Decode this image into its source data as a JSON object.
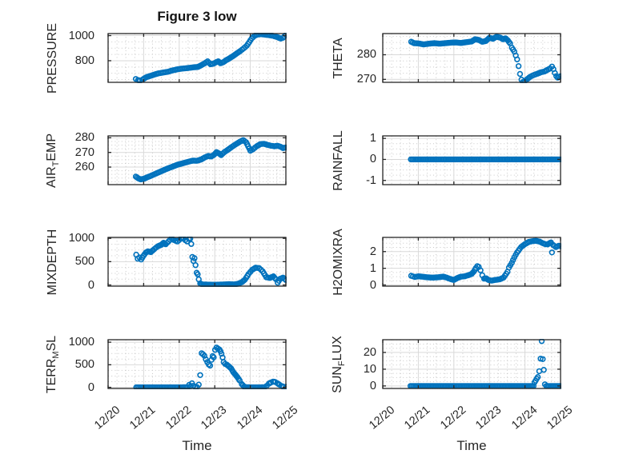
{
  "figure": {
    "title": "Figure 3 low",
    "xlabel": "Time",
    "x_tick_labels": [
      "12/20",
      "12/21",
      "12/22",
      "12/23",
      "12/24",
      "12/25"
    ],
    "xlim_days": [
      0,
      5
    ],
    "marker_interval_days": 0.04,
    "accent_color": "#0072BD",
    "axis_color": "#262626",
    "grid_color": "#d9d9d9",
    "minor_grid_color": "#c9c9c9",
    "background": "#ffffff"
  },
  "chart_data": [
    {
      "type": "scatter",
      "ylabel": "PRESSURE",
      "ylabel_segments": [
        {
          "text": "PRESSURE",
          "sub": false
        }
      ],
      "yticks": [
        1000,
        800
      ],
      "ylim": [
        628,
        1016
      ],
      "points": [
        [
          0.78,
          655
        ],
        [
          0.84,
          646
        ],
        [
          0.9,
          642
        ],
        [
          0.96,
          648
        ],
        [
          1.02,
          660
        ],
        [
          1.1,
          672
        ],
        [
          1.2,
          680
        ],
        [
          1.3,
          690
        ],
        [
          1.42,
          700
        ],
        [
          1.55,
          706
        ],
        [
          1.68,
          712
        ],
        [
          1.8,
          722
        ],
        [
          1.92,
          730
        ],
        [
          2.05,
          736
        ],
        [
          2.18,
          740
        ],
        [
          2.3,
          744
        ],
        [
          2.42,
          748
        ],
        [
          2.52,
          750
        ],
        [
          2.62,
          764
        ],
        [
          2.72,
          780
        ],
        [
          2.8,
          795
        ],
        [
          2.88,
          772
        ],
        [
          2.96,
          776
        ],
        [
          3.04,
          788
        ],
        [
          3.1,
          795
        ],
        [
          3.16,
          780
        ],
        [
          3.24,
          788
        ],
        [
          3.32,
          804
        ],
        [
          3.42,
          820
        ],
        [
          3.52,
          838
        ],
        [
          3.62,
          858
        ],
        [
          3.72,
          878
        ],
        [
          3.82,
          900
        ],
        [
          3.9,
          920
        ],
        [
          3.97,
          948
        ],
        [
          4.04,
          978
        ],
        [
          4.12,
          998
        ],
        [
          4.2,
          1008
        ],
        [
          4.3,
          1011
        ],
        [
          4.4,
          1008
        ],
        [
          4.52,
          1004
        ],
        [
          4.64,
          998
        ],
        [
          4.76,
          988
        ],
        [
          4.86,
          976
        ],
        [
          4.92,
          982
        ],
        [
          5.0,
          1005
        ]
      ]
    },
    {
      "type": "scatter",
      "ylabel": "THETA",
      "ylabel_segments": [
        {
          "text": "THETA",
          "sub": false
        }
      ],
      "yticks": [
        280,
        270
      ],
      "ylim": [
        268.8,
        288.6
      ],
      "points": [
        [
          0.8,
          285.3
        ],
        [
          0.88,
          284.7
        ],
        [
          1.0,
          284.6
        ],
        [
          1.15,
          284.2
        ],
        [
          1.3,
          284.5
        ],
        [
          1.45,
          284.7
        ],
        [
          1.6,
          284.5
        ],
        [
          1.75,
          284.7
        ],
        [
          1.9,
          284.9
        ],
        [
          2.05,
          285.0
        ],
        [
          2.2,
          284.8
        ],
        [
          2.35,
          285.1
        ],
        [
          2.5,
          285.4
        ],
        [
          2.6,
          286.3
        ],
        [
          2.7,
          286.0
        ],
        [
          2.8,
          285.3
        ],
        [
          2.9,
          285.6
        ],
        [
          3.0,
          286.9
        ],
        [
          3.1,
          286.5
        ],
        [
          3.2,
          287.3
        ],
        [
          3.3,
          287.0
        ],
        [
          3.38,
          286.3
        ],
        [
          3.45,
          286.7
        ],
        [
          3.52,
          285.8
        ],
        [
          3.58,
          284.6
        ],
        [
          3.63,
          282.9
        ],
        [
          3.7,
          281.3
        ],
        [
          3.74,
          279.7
        ],
        [
          3.78,
          278.1
        ],
        [
          3.82,
          275.4
        ],
        [
          3.86,
          272.2
        ],
        [
          3.9,
          269.9
        ],
        [
          3.94,
          268.9
        ],
        [
          4.0,
          269.4
        ],
        [
          4.08,
          270.3
        ],
        [
          4.15,
          271.1
        ],
        [
          4.25,
          271.8
        ],
        [
          4.35,
          272.3
        ],
        [
          4.45,
          272.9
        ],
        [
          4.55,
          273.2
        ],
        [
          4.62,
          273.8
        ],
        [
          4.7,
          274.4
        ],
        [
          4.76,
          275.2
        ],
        [
          4.8,
          274.2
        ],
        [
          4.84,
          272.6
        ],
        [
          4.88,
          271.3
        ],
        [
          4.92,
          270.7
        ],
        [
          4.96,
          271.0
        ],
        [
          5.0,
          271.3
        ]
      ]
    },
    {
      "type": "scatter",
      "ylabel": "AIR_TEMP",
      "ylabel_segments": [
        {
          "text": "AIR",
          "sub": false
        },
        {
          "text": "T",
          "sub": true
        },
        {
          "text": "EMP",
          "sub": false
        }
      ],
      "yticks": [
        280,
        270,
        260
      ],
      "ylim": [
        248,
        281.3
      ],
      "points": [
        [
          0.78,
          253.5
        ],
        [
          0.85,
          252.3
        ],
        [
          0.92,
          251.6
        ],
        [
          1.0,
          252.0
        ],
        [
          1.1,
          253.0
        ],
        [
          1.22,
          254.2
        ],
        [
          1.35,
          255.6
        ],
        [
          1.5,
          257.2
        ],
        [
          1.65,
          258.8
        ],
        [
          1.8,
          260.2
        ],
        [
          1.95,
          261.6
        ],
        [
          2.1,
          262.6
        ],
        [
          2.25,
          263.6
        ],
        [
          2.38,
          264.4
        ],
        [
          2.5,
          264.3
        ],
        [
          2.62,
          265.2
        ],
        [
          2.72,
          266.6
        ],
        [
          2.82,
          267.6
        ],
        [
          2.9,
          267.2
        ],
        [
          2.98,
          268.4
        ],
        [
          3.05,
          270.2
        ],
        [
          3.12,
          269.3
        ],
        [
          3.18,
          268.2
        ],
        [
          3.26,
          270.0
        ],
        [
          3.35,
          271.5
        ],
        [
          3.45,
          273.3
        ],
        [
          3.58,
          275.4
        ],
        [
          3.7,
          277.2
        ],
        [
          3.8,
          278.4
        ],
        [
          3.88,
          277.0
        ],
        [
          3.94,
          274.2
        ],
        [
          4.0,
          271.2
        ],
        [
          4.08,
          272.3
        ],
        [
          4.18,
          274.2
        ],
        [
          4.28,
          275.7
        ],
        [
          4.38,
          275.9
        ],
        [
          4.48,
          275.2
        ],
        [
          4.58,
          274.6
        ],
        [
          4.68,
          274.2
        ],
        [
          4.76,
          274.6
        ],
        [
          4.84,
          274.0
        ],
        [
          4.92,
          273.0
        ],
        [
          5.0,
          273.4
        ]
      ]
    },
    {
      "type": "scatter",
      "ylabel": "RAINFALL",
      "ylabel_segments": [
        {
          "text": "RAINFALL",
          "sub": false
        }
      ],
      "yticks": [
        1,
        0,
        -1
      ],
      "ylim": [
        -1.2,
        1.12
      ],
      "points": [
        [
          0.79,
          0
        ],
        [
          5.0,
          0
        ]
      ]
    },
    {
      "type": "scatter",
      "ylabel": "MIXDEPTH",
      "ylabel_segments": [
        {
          "text": "MIXDEPTH",
          "sub": false
        }
      ],
      "yticks": [
        1000,
        500,
        0
      ],
      "ylim": [
        -25,
        1020
      ],
      "points": [
        [
          0.79,
          650
        ],
        [
          0.83,
          565
        ],
        [
          0.88,
          590
        ],
        [
          0.93,
          548
        ],
        [
          1.0,
          630
        ],
        [
          1.06,
          695
        ],
        [
          1.12,
          720
        ],
        [
          1.2,
          705
        ],
        [
          1.3,
          770
        ],
        [
          1.4,
          830
        ],
        [
          1.5,
          862
        ],
        [
          1.56,
          905
        ],
        [
          1.62,
          872
        ],
        [
          1.7,
          935
        ],
        [
          1.78,
          1000
        ],
        [
          1.85,
          965
        ],
        [
          1.95,
          932
        ],
        [
          2.05,
          1000
        ],
        [
          2.12,
          1005
        ],
        [
          2.17,
          962
        ],
        [
          2.22,
          935
        ],
        [
          2.27,
          990
        ],
        [
          2.31,
          995
        ],
        [
          2.34,
          880
        ],
        [
          2.37,
          600
        ],
        [
          2.4,
          515
        ],
        [
          2.43,
          575
        ],
        [
          2.46,
          425
        ],
        [
          2.49,
          262
        ],
        [
          2.52,
          228
        ],
        [
          2.55,
          120
        ],
        [
          2.59,
          35
        ],
        [
          2.65,
          12
        ],
        [
          2.8,
          8
        ],
        [
          3.0,
          5
        ],
        [
          3.2,
          10
        ],
        [
          3.4,
          18
        ],
        [
          3.55,
          12
        ],
        [
          3.65,
          25
        ],
        [
          3.75,
          55
        ],
        [
          3.85,
          115
        ],
        [
          3.95,
          235
        ],
        [
          4.05,
          325
        ],
        [
          4.15,
          372
        ],
        [
          4.25,
          360
        ],
        [
          4.35,
          292
        ],
        [
          4.45,
          165
        ],
        [
          4.55,
          152
        ],
        [
          4.65,
          185
        ],
        [
          4.72,
          122
        ],
        [
          4.77,
          48
        ],
        [
          4.84,
          132
        ],
        [
          4.92,
          158
        ],
        [
          5.0,
          108
        ]
      ]
    },
    {
      "type": "scatter",
      "ylabel": "H2OMIXRA",
      "ylabel_segments": [
        {
          "text": "H2OMIXRA",
          "sub": false
        }
      ],
      "yticks": [
        2,
        1,
        0
      ],
      "ylim": [
        -0.07,
        2.85
      ],
      "points": [
        [
          0.8,
          0.55
        ],
        [
          0.9,
          0.48
        ],
        [
          1.0,
          0.52
        ],
        [
          1.1,
          0.5
        ],
        [
          1.25,
          0.46
        ],
        [
          1.4,
          0.44
        ],
        [
          1.55,
          0.46
        ],
        [
          1.7,
          0.5
        ],
        [
          1.8,
          0.44
        ],
        [
          1.9,
          0.36
        ],
        [
          2.0,
          0.3
        ],
        [
          2.1,
          0.42
        ],
        [
          2.2,
          0.5
        ],
        [
          2.3,
          0.52
        ],
        [
          2.4,
          0.58
        ],
        [
          2.5,
          0.66
        ],
        [
          2.56,
          0.8
        ],
        [
          2.62,
          1.02
        ],
        [
          2.66,
          1.13
        ],
        [
          2.7,
          1.08
        ],
        [
          2.75,
          0.88
        ],
        [
          2.8,
          0.58
        ],
        [
          2.85,
          0.38
        ],
        [
          2.91,
          0.4
        ],
        [
          2.97,
          0.3
        ],
        [
          3.06,
          0.26
        ],
        [
          3.15,
          0.3
        ],
        [
          3.29,
          0.34
        ],
        [
          3.4,
          0.45
        ],
        [
          3.51,
          0.79
        ],
        [
          3.55,
          1.04
        ],
        [
          3.63,
          1.33
        ],
        [
          3.7,
          1.66
        ],
        [
          3.78,
          1.95
        ],
        [
          3.89,
          2.27
        ],
        [
          4.0,
          2.45
        ],
        [
          4.11,
          2.58
        ],
        [
          4.2,
          2.62
        ],
        [
          4.3,
          2.65
        ],
        [
          4.41,
          2.6
        ],
        [
          4.5,
          2.5
        ],
        [
          4.58,
          2.44
        ],
        [
          4.64,
          2.43
        ],
        [
          4.7,
          2.52
        ],
        [
          4.73,
          2.55
        ],
        [
          4.76,
          1.95
        ],
        [
          4.79,
          2.4
        ],
        [
          4.87,
          2.27
        ],
        [
          4.95,
          2.35
        ],
        [
          5.0,
          2.33
        ]
      ]
    },
    {
      "type": "scatter",
      "ylabel": "TERR_MSL",
      "ylabel_segments": [
        {
          "text": "TERR",
          "sub": false
        },
        {
          "text": "M",
          "sub": true
        },
        {
          "text": "SL",
          "sub": false
        }
      ],
      "yticks": [
        1000,
        500,
        0
      ],
      "ylim": [
        -25,
        1055
      ],
      "points": [
        [
          0.79,
          0
        ],
        [
          1.2,
          0
        ],
        [
          1.6,
          0
        ],
        [
          2.0,
          0
        ],
        [
          2.24,
          2
        ],
        [
          2.28,
          55
        ],
        [
          2.32,
          25
        ],
        [
          2.36,
          90
        ],
        [
          2.4,
          35
        ],
        [
          2.45,
          8
        ],
        [
          2.5,
          5
        ],
        [
          2.55,
          60
        ],
        [
          2.59,
          270
        ],
        [
          2.63,
          755
        ],
        [
          2.67,
          732
        ],
        [
          2.71,
          700
        ],
        [
          2.75,
          620
        ],
        [
          2.79,
          558
        ],
        [
          2.83,
          506
        ],
        [
          2.87,
          482
        ],
        [
          2.91,
          610
        ],
        [
          2.94,
          692
        ],
        [
          2.97,
          665
        ],
        [
          3.01,
          830
        ],
        [
          3.05,
          882
        ],
        [
          3.09,
          858
        ],
        [
          3.13,
          838
        ],
        [
          3.16,
          800
        ],
        [
          3.19,
          745
        ],
        [
          3.22,
          662
        ],
        [
          3.25,
          560
        ],
        [
          3.29,
          520
        ],
        [
          3.34,
          502
        ],
        [
          3.4,
          462
        ],
        [
          3.46,
          420
        ],
        [
          3.52,
          338
        ],
        [
          3.58,
          282
        ],
        [
          3.64,
          222
        ],
        [
          3.7,
          152
        ],
        [
          3.76,
          72
        ],
        [
          3.82,
          18
        ],
        [
          3.88,
          2
        ],
        [
          4.05,
          0
        ],
        [
          4.25,
          0
        ],
        [
          4.4,
          2
        ],
        [
          4.46,
          32
        ],
        [
          4.52,
          82
        ],
        [
          4.58,
          108
        ],
        [
          4.64,
          128
        ],
        [
          4.7,
          118
        ],
        [
          4.76,
          92
        ],
        [
          4.82,
          58
        ],
        [
          4.88,
          30
        ],
        [
          4.94,
          10
        ],
        [
          5.0,
          12
        ]
      ]
    },
    {
      "type": "scatter",
      "ylabel": "SUN_FLUX",
      "ylabel_segments": [
        {
          "text": "SUN",
          "sub": false
        },
        {
          "text": "F",
          "sub": true
        },
        {
          "text": "LUX",
          "sub": false
        }
      ],
      "yticks": [
        20,
        10,
        0
      ],
      "ylim": [
        -1.5,
        27.6
      ],
      "points": [
        [
          0.78,
          0
        ],
        [
          1.5,
          0
        ],
        [
          2.5,
          0
        ],
        [
          3.5,
          0
        ],
        [
          4.24,
          0
        ],
        [
          4.27,
          2.2
        ],
        [
          4.3,
          3.2
        ],
        [
          4.33,
          4.3
        ],
        [
          4.36,
          5.3
        ],
        [
          4.4,
          8.8
        ],
        [
          4.44,
          16.3
        ],
        [
          4.47,
          26.8
        ],
        [
          4.5,
          16.0
        ],
        [
          4.53,
          9.6
        ],
        [
          4.56,
          1.0
        ],
        [
          4.6,
          0
        ],
        [
          5.0,
          0
        ]
      ]
    }
  ]
}
